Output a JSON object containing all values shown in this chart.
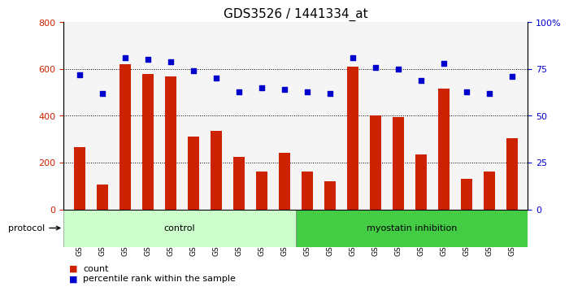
{
  "title": "GDS3526 / 1441334_at",
  "samples": [
    "GSM344631",
    "GSM344632",
    "GSM344633",
    "GSM344634",
    "GSM344635",
    "GSM344636",
    "GSM344637",
    "GSM344638",
    "GSM344639",
    "GSM344640",
    "GSM344641",
    "GSM344642",
    "GSM344643",
    "GSM344644",
    "GSM344645",
    "GSM344646",
    "GSM344647",
    "GSM344648",
    "GSM344649",
    "GSM344650"
  ],
  "counts": [
    265,
    105,
    620,
    580,
    570,
    310,
    335,
    225,
    160,
    240,
    160,
    120,
    610,
    400,
    395,
    235,
    515,
    130,
    160,
    305
  ],
  "percentile_ranks": [
    72,
    62,
    81,
    80,
    79,
    74,
    70,
    63,
    65,
    64,
    63,
    62,
    81,
    76,
    75,
    69,
    78,
    63,
    62,
    71
  ],
  "control_count": 10,
  "bar_color": "#cc2200",
  "dot_color": "#0000cc",
  "control_bg": "#ccffcc",
  "inhibition_bg": "#44cc44",
  "title_fontsize": 11,
  "ylim_left": [
    0,
    800
  ],
  "ylim_right": [
    0,
    100
  ],
  "yticks_left": [
    0,
    200,
    400,
    600,
    800
  ],
  "yticks_right": [
    0,
    25,
    50,
    75,
    100
  ],
  "protocol_label": "protocol",
  "control_label": "control",
  "inhibition_label": "myostatin inhibition",
  "legend_count": "count",
  "legend_pct": "percentile rank within the sample"
}
